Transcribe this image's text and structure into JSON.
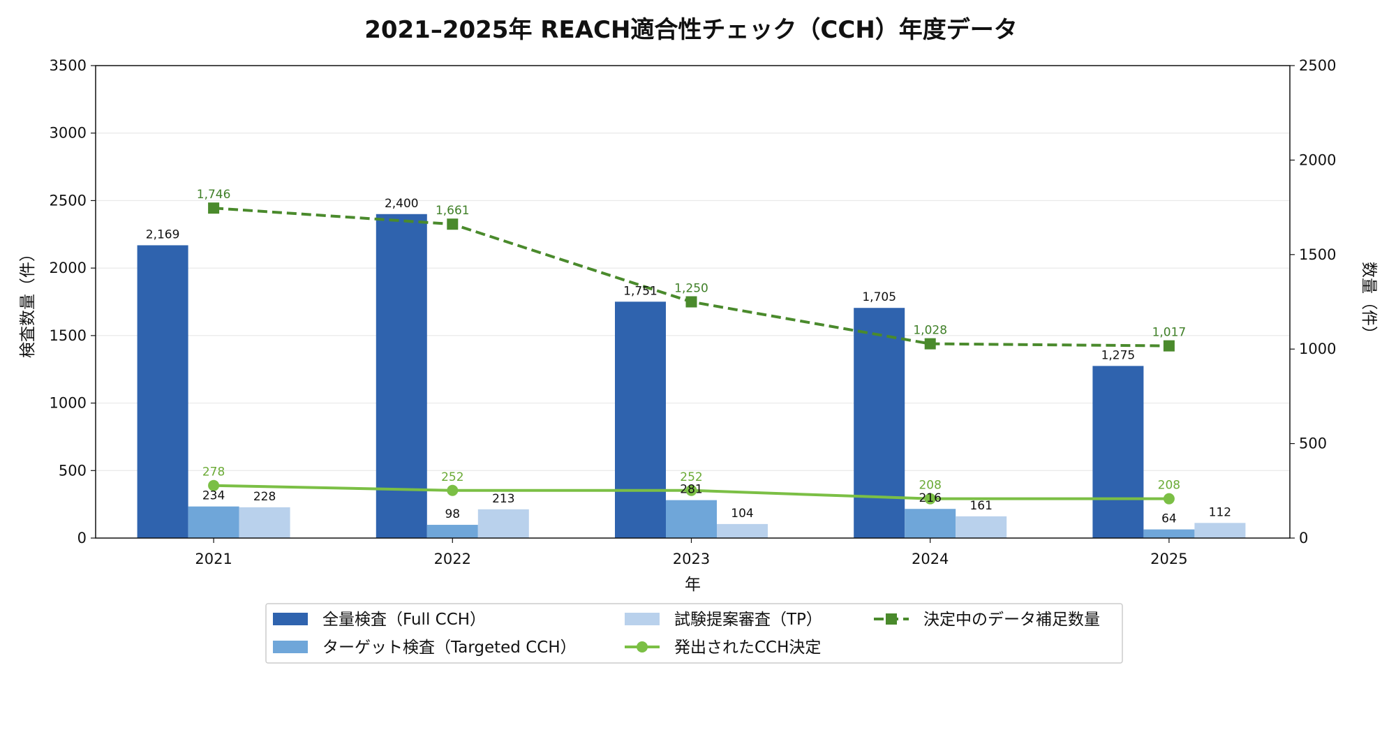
{
  "chart_data": {
    "type": "bar",
    "title": "2021–2025年 REACH適合性チェック（CCH）年度データ",
    "xlabel": "年",
    "ylabel": "検査数量（件）",
    "ylabel_right": "数量（件）",
    "categories": [
      "2021",
      "2022",
      "2023",
      "2024",
      "2025"
    ],
    "ylim": [
      0,
      3500
    ],
    "yticks": [
      0,
      500,
      1000,
      1500,
      2000,
      2500,
      3000,
      3500
    ],
    "ylim_right": [
      0,
      2500
    ],
    "yticks_right": [
      0,
      500,
      1000,
      1500,
      2000,
      2500
    ],
    "grid": "horizontal",
    "legend_position": "bottom-center",
    "bar_series": [
      {
        "name": "全量検査（Full CCH）",
        "color": "#2f63ae",
        "values": [
          2169,
          2400,
          1751,
          1705,
          1275
        ],
        "labels": [
          "2,169",
          "2,400",
          "1,751",
          "1,705",
          "1,275"
        ]
      },
      {
        "name": "ターゲット検査（Targeted CCH）",
        "color": "#6fa6d9",
        "values": [
          234,
          98,
          281,
          216,
          64
        ],
        "labels": [
          "234",
          "98",
          "281",
          "216",
          "64"
        ]
      },
      {
        "name": "試験提案審査（TP）",
        "color": "#b9d1ec",
        "values": [
          228,
          213,
          104,
          161,
          112
        ],
        "labels": [
          "228",
          "213",
          "104",
          "161",
          "112"
        ]
      }
    ],
    "line_series": [
      {
        "name": "発出されたCCH決定",
        "axis": "right",
        "color": "#7bbf45",
        "label_color": "#6aaa35",
        "marker": "circle",
        "dashed": false,
        "values": [
          278,
          252,
          252,
          208,
          208
        ],
        "labels": [
          "278",
          "252",
          "252",
          "208",
          "208"
        ]
      },
      {
        "name": "決定中のデータ補足数量",
        "axis": "right",
        "color": "#4a8a2c",
        "label_color": "#3f7f27",
        "marker": "square",
        "dashed": true,
        "values": [
          1746,
          1661,
          1250,
          1028,
          1017
        ],
        "labels": [
          "1,746",
          "1,661",
          "1,250",
          "1,028",
          "1,017"
        ]
      }
    ]
  }
}
